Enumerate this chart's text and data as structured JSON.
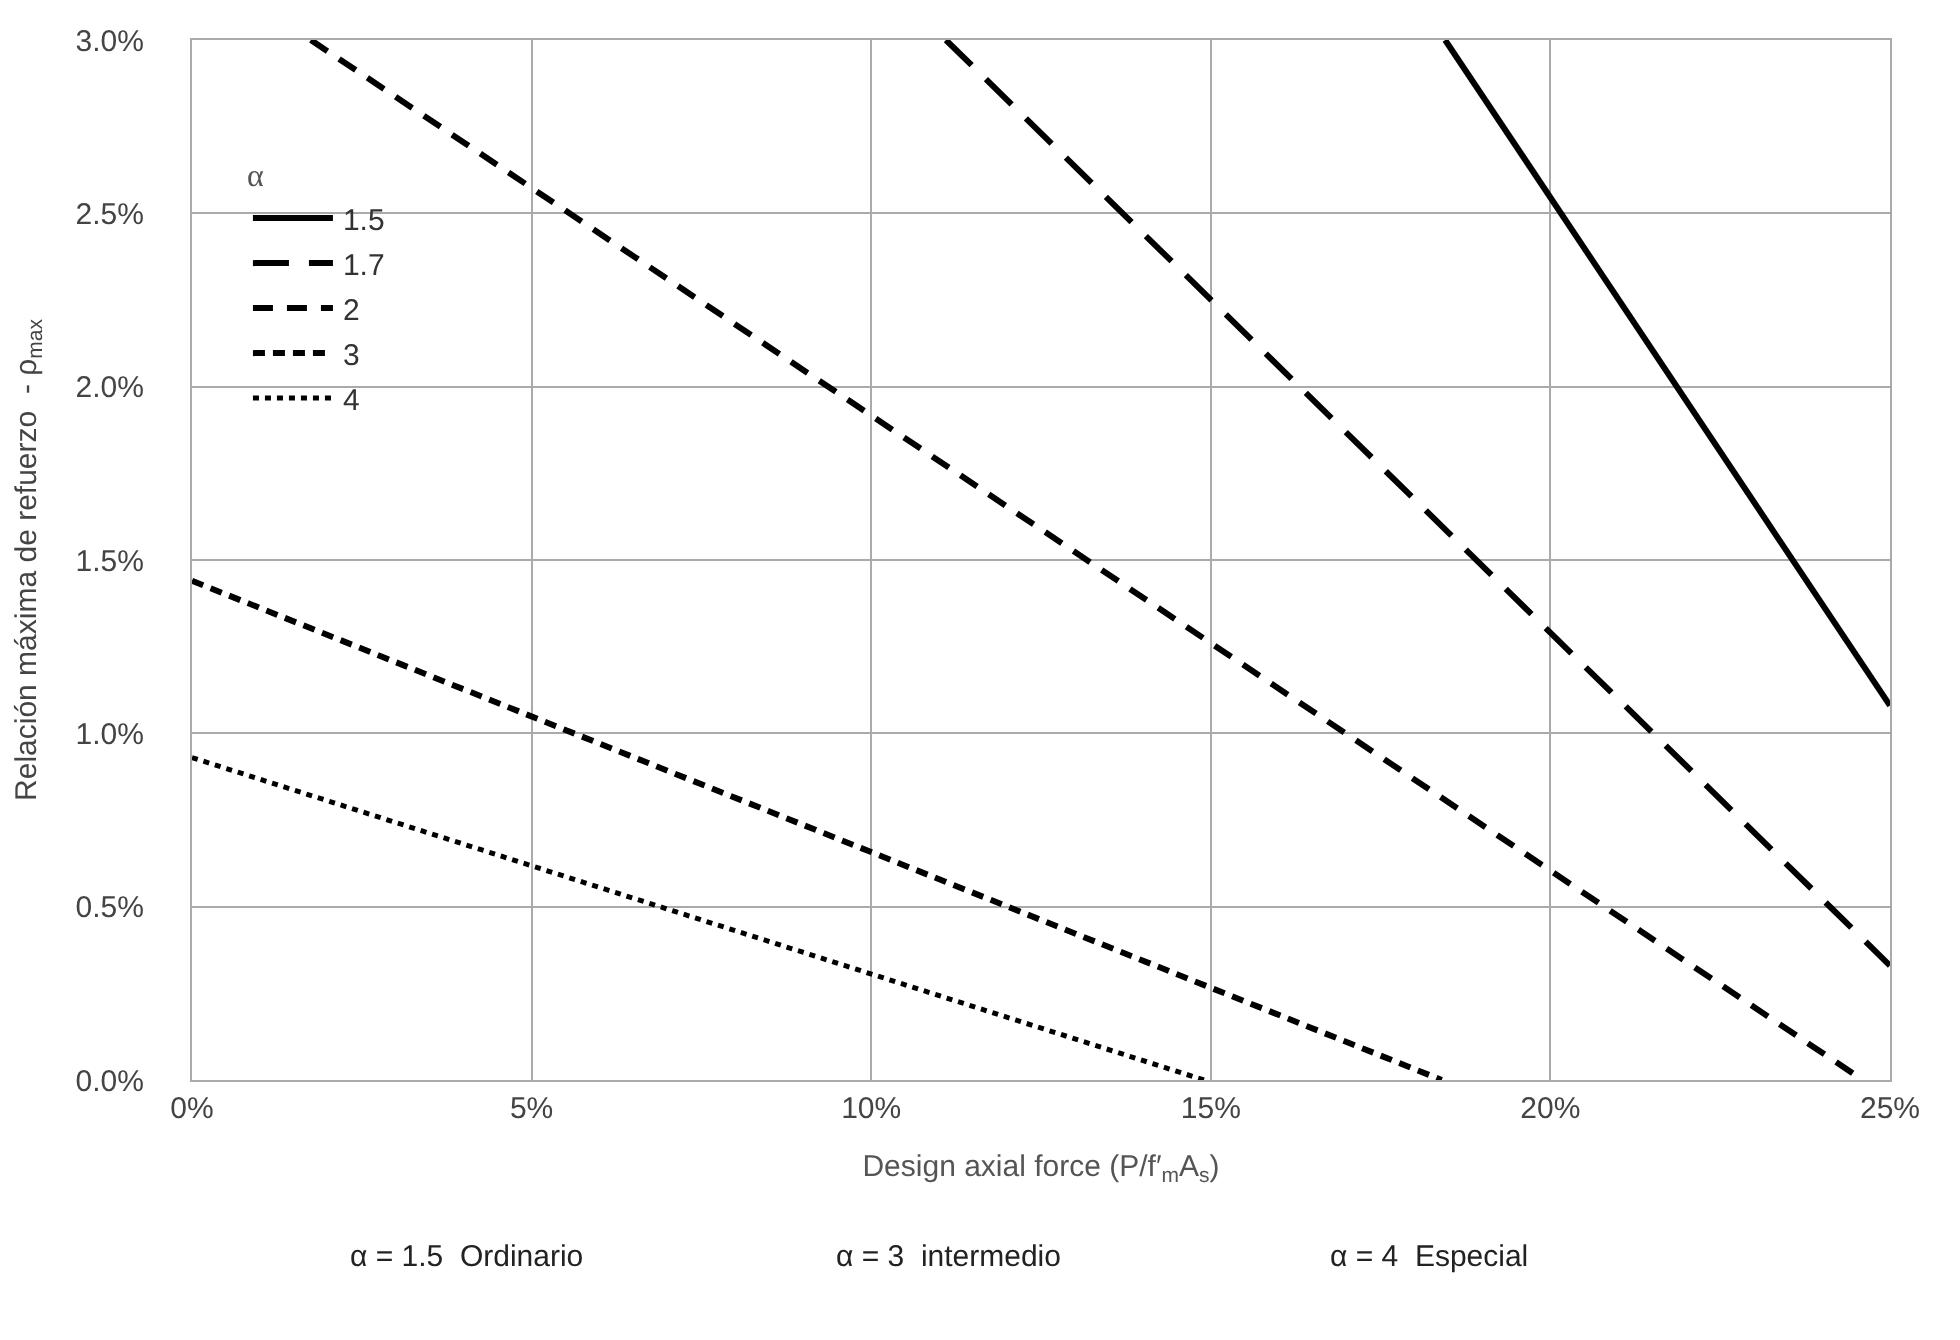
{
  "chart_data": {
    "type": "line",
    "xlabel": "Design axial force (P/f′$_{m}$A$_{s}$)",
    "ylabel": "Relación máxima de refuerzo  - ρ$_{max}$",
    "legend_title": "α",
    "legend": "top left",
    "grid": true,
    "xlim": [
      0,
      25
    ],
    "ylim": [
      0,
      3
    ],
    "xticks": [
      {
        "value": 0,
        "label": "0%"
      },
      {
        "value": 5,
        "label": "5%"
      },
      {
        "value": 10,
        "label": "10%"
      },
      {
        "value": 15,
        "label": "15%"
      },
      {
        "value": 20,
        "label": "20%"
      },
      {
        "value": 25,
        "label": "25%"
      }
    ],
    "yticks": [
      {
        "value": 0,
        "label": "0.0%"
      },
      {
        "value": 0.5,
        "label": "0.5%"
      },
      {
        "value": 1,
        "label": "1.0%"
      },
      {
        "value": 1.5,
        "label": "1.5%"
      },
      {
        "value": 2,
        "label": "2.0%"
      },
      {
        "value": 2.5,
        "label": "2.5%"
      },
      {
        "value": 3,
        "label": "3.0%"
      }
    ],
    "series": [
      {
        "name": "1.5",
        "color": "#000000",
        "line_style": "solid",
        "x": [
          18.45,
          25
        ],
        "values": [
          3.0,
          1.08
        ]
      },
      {
        "name": "1.7",
        "color": "#000000",
        "line_style": "dashed",
        "x": [
          11.1,
          25
        ],
        "values": [
          3.0,
          0.33
        ]
      },
      {
        "name": "2",
        "color": "#000000",
        "line_style": "dashed",
        "x": [
          1.75,
          24.6
        ],
        "values": [
          3.0,
          0
        ]
      },
      {
        "name": "3",
        "color": "#000000",
        "line_style": "dashed",
        "x": [
          0,
          18.4
        ],
        "values": [
          1.44,
          0
        ]
      },
      {
        "name": "4",
        "color": "#000000",
        "line_style": "dotted",
        "x": [
          0,
          14.9
        ],
        "values": [
          0.93,
          0
        ]
      }
    ],
    "annotations": [
      "α = 1.5  Ordinario",
      "α = 3  intermedio",
      "α = 4  Especial"
    ]
  }
}
